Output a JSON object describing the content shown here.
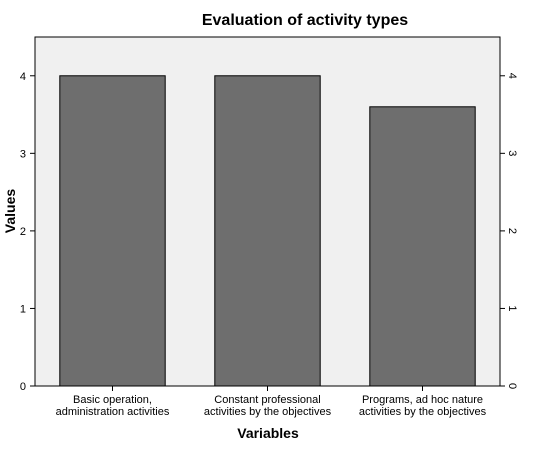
{
  "chart_data": {
    "type": "bar",
    "title": "Evaluation of activity types",
    "xlabel": "Variables",
    "ylabel": "Values",
    "categories": [
      [
        "Basic operation,",
        "administration activities"
      ],
      [
        "Constant professional",
        "activities by the objectives"
      ],
      [
        "Programs, ad hoc nature",
        "activities by the objectives"
      ]
    ],
    "values": [
      4.0,
      4.0,
      3.6
    ],
    "ylim": [
      0,
      4.5
    ],
    "yticks": [
      0,
      1,
      2,
      3,
      4
    ],
    "grid": false,
    "mirror_right_axis": true,
    "colors": {
      "bar": "#6e6e6e",
      "plot_bg": "#f0f0f0",
      "stroke": "#000000"
    }
  }
}
